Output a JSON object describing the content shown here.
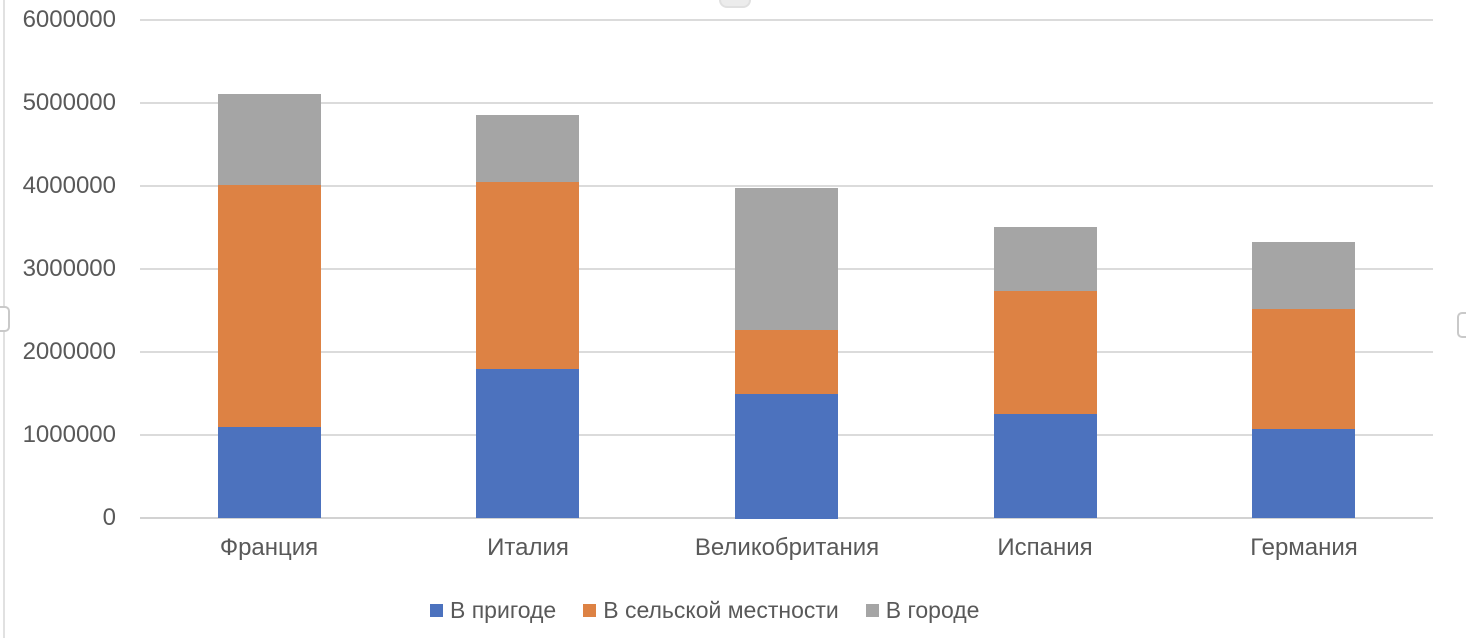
{
  "chart_data": {
    "type": "bar",
    "stacked": true,
    "orientation": "vertical",
    "title": "",
    "xlabel": "",
    "ylabel": "",
    "categories": [
      "Франция",
      "Италия",
      "Великобритания",
      "Испания",
      "Германия"
    ],
    "series": [
      {
        "name": "В пригоде",
        "color": "#4C72BE",
        "values": [
          1100000,
          1800000,
          1500000,
          1250000,
          1070000
        ]
      },
      {
        "name": "В сельской местности",
        "color": "#DD8244",
        "values": [
          2910000,
          2250000,
          770000,
          1480000,
          1450000
        ]
      },
      {
        "name": "В городе",
        "color": "#A5A5A5",
        "values": [
          1100000,
          810000,
          1710000,
          770000,
          810000
        ]
      }
    ],
    "stack_totals": [
      5110000,
      4860000,
      3980000,
      3500000,
      3330000
    ],
    "ylim": [
      0,
      6000000
    ],
    "ytick_interval": 1000000,
    "yticks": [
      "6000000",
      "5000000",
      "4000000",
      "3000000",
      "2000000",
      "1000000",
      "0"
    ],
    "grid": "horizontal",
    "legend_position": "bottom",
    "colors": {
      "text": "#595959",
      "gridline": "#DBDBDB",
      "axis_line": "#D2D2D2",
      "background": "#FFFFFF"
    }
  }
}
